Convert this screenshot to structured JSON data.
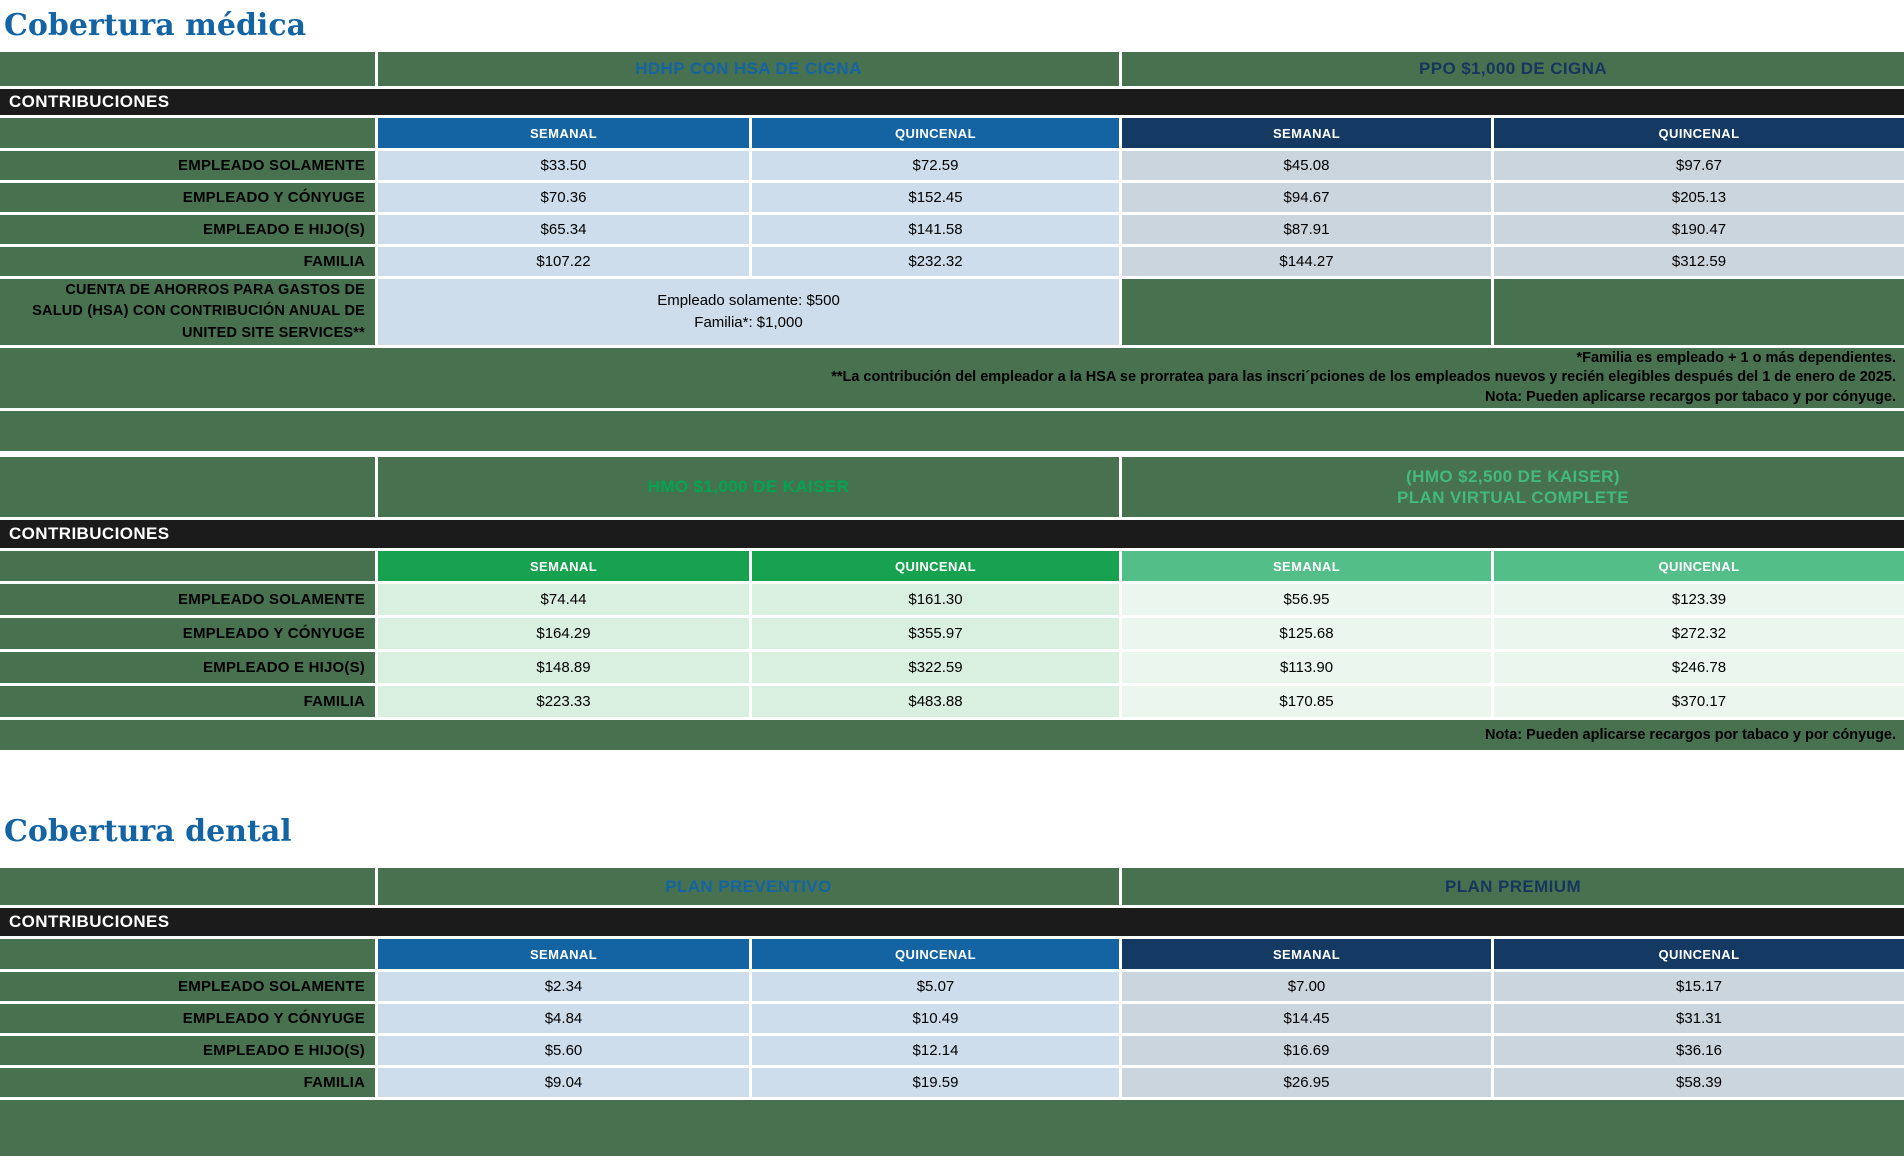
{
  "colors": {
    "table_green": "#487150",
    "blue_accent": "#1464A4",
    "navy_accent": "#143A63",
    "navy_text": "#16365E",
    "kaiser_green": "#16A24E",
    "kaiser_light_green": "#53BE88",
    "kaiser_green_text": "#00A551",
    "kaiser_light_green_text": "#42BA7D",
    "light_blue_cell": "#CEDDEB",
    "gray_blue_cell": "#CBD5DD",
    "light_green_cell": "#D9F0E1",
    "lighter_green_cell": "#EAF6EE",
    "black_bar": "#1B1B1B"
  },
  "medical": {
    "title": "Cobertura médica",
    "contributions_label": "CONTRIBUCIONES",
    "plans": [
      {
        "name": "HDHP CON HSA DE CIGNA"
      },
      {
        "name": "PPO $1,000 DE CIGNA"
      }
    ],
    "col_headers": [
      "SEMANAL",
      "QUINCENAL",
      "SEMANAL",
      "QUINCENAL"
    ],
    "rows": [
      {
        "label": "EMPLEADO SOLAMENTE",
        "values": [
          "$33.50",
          "$72.59",
          "$45.08",
          "$97.67"
        ]
      },
      {
        "label": "EMPLEADO Y CÓNYUGE",
        "values": [
          "$70.36",
          "$152.45",
          "$94.67",
          "$205.13"
        ]
      },
      {
        "label": "EMPLEADO E HIJO(S)",
        "values": [
          "$65.34",
          "$141.58",
          "$87.91",
          "$190.47"
        ]
      },
      {
        "label": "FAMILIA",
        "values": [
          "$107.22",
          "$232.32",
          "$144.27",
          "$312.59"
        ]
      }
    ],
    "hsa_row": {
      "label": "CUENTA DE AHORROS PARA GASTOS DE SALUD (HSA) CON CONTRIBUCIÓN ANUAL DE UNITED SITE SERVICES**",
      "value_line1": "Empleado solamente: $500",
      "value_line2": "Familia*: $1,000"
    },
    "footnotes": [
      "*Familia es empleado + 1 o más dependientes.",
      "**La contribución del empleador a la HSA se prorratea para las inscri´pciones de los empleados nuevos y recién elegibles después del 1 de enero de 2025.",
      "Nota: Pueden aplicarse recargos por tabaco y por cónyuge."
    ]
  },
  "kaiser": {
    "contributions_label": "CONTRIBUCIONES",
    "plans": [
      {
        "name": "HMO $1,000 DE KAISER"
      },
      {
        "name_line1": "(HMO $2,500 DE KAISER)",
        "name_line2": "PLAN VIRTUAL COMPLETE"
      }
    ],
    "col_headers": [
      "SEMANAL",
      "QUINCENAL",
      "SEMANAL",
      "QUINCENAL"
    ],
    "rows": [
      {
        "label": "EMPLEADO SOLAMENTE",
        "values": [
          "$74.44",
          "$161.30",
          "$56.95",
          "$123.39"
        ]
      },
      {
        "label": "EMPLEADO Y CÓNYUGE",
        "values": [
          "$164.29",
          "$355.97",
          "$125.68",
          "$272.32"
        ]
      },
      {
        "label": "EMPLEADO E HIJO(S)",
        "values": [
          "$148.89",
          "$322.59",
          "$113.90",
          "$246.78"
        ]
      },
      {
        "label": "FAMILIA",
        "values": [
          "$223.33",
          "$483.88",
          "$170.85",
          "$370.17"
        ]
      }
    ],
    "footnote": "Nota: Pueden aplicarse recargos por tabaco y por cónyuge."
  },
  "dental": {
    "title": "Cobertura dental",
    "contributions_label": "CONTRIBUCIONES",
    "plans": [
      {
        "name": "PLAN PREVENTIVO"
      },
      {
        "name": "PLAN PREMIUM"
      }
    ],
    "col_headers": [
      "SEMANAL",
      "QUINCENAL",
      "SEMANAL",
      "QUINCENAL"
    ],
    "rows": [
      {
        "label": "EMPLEADO SOLAMENTE",
        "values": [
          "$2.34",
          "$5.07",
          "$7.00",
          "$15.17"
        ]
      },
      {
        "label": "EMPLEADO Y CÓNYUGE",
        "values": [
          "$4.84",
          "$10.49",
          "$14.45",
          "$31.31"
        ]
      },
      {
        "label": "EMPLEADO E HIJO(S)",
        "values": [
          "$5.60",
          "$12.14",
          "$16.69",
          "$36.16"
        ]
      },
      {
        "label": "FAMILIA",
        "values": [
          "$9.04",
          "$19.59",
          "$26.95",
          "$58.39"
        ]
      }
    ]
  }
}
